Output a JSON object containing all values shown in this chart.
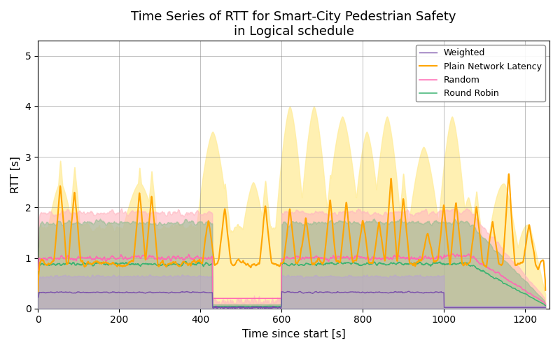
{
  "title": "Time Series of RTT for Smart-City Pedestrian Safety\nin Logical schedule",
  "xlabel": "Time since start [s]",
  "ylabel": "RTT [s]",
  "xlim": [
    0,
    1260
  ],
  "ylim": [
    0,
    5.3
  ],
  "yticks": [
    0,
    1,
    2,
    3,
    4,
    5
  ],
  "xticks": [
    0,
    200,
    400,
    600,
    800,
    1000,
    1200
  ],
  "series": {
    "weighted": {
      "color": "#7B52AB",
      "band_color": "#B8A0D8",
      "label": "Weighted"
    },
    "plain": {
      "color": "#FFA500",
      "band_color": "#FFEC99",
      "label": "Plain Network Latency"
    },
    "random": {
      "color": "#FF69B4",
      "band_color": "#FFB6C1",
      "label": "Random"
    },
    "roundrobin": {
      "color": "#3CB371",
      "band_color": "#8FBC8F",
      "label": "Round Robin"
    }
  },
  "legend_loc": "upper right",
  "grid": true,
  "background": "#ffffff",
  "title_fontsize": 13
}
